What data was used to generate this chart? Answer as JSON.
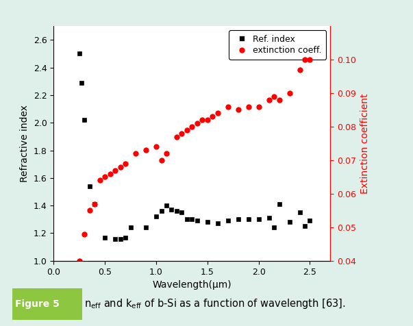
{
  "n_wavelength": [
    0.25,
    0.27,
    0.3,
    0.35,
    0.4,
    0.5,
    0.6,
    0.65,
    0.7,
    0.75,
    0.9,
    1.0,
    1.05,
    1.1,
    1.15,
    1.2,
    1.25,
    1.3,
    1.35,
    1.4,
    1.5,
    1.6,
    1.7,
    1.8,
    1.9,
    2.0,
    2.1,
    2.15,
    2.2,
    2.3,
    2.4,
    2.45,
    2.5
  ],
  "n_values": [
    2.5,
    2.29,
    2.02,
    1.54,
    1.41,
    1.17,
    1.16,
    1.16,
    1.17,
    1.24,
    1.24,
    1.32,
    1.36,
    1.4,
    1.37,
    1.36,
    1.35,
    1.3,
    1.3,
    1.29,
    1.28,
    1.27,
    1.29,
    1.3,
    1.3,
    1.3,
    1.31,
    1.24,
    1.41,
    1.28,
    1.35,
    1.25,
    1.29
  ],
  "k_wavelength": [
    0.25,
    0.3,
    0.35,
    0.4,
    0.45,
    0.5,
    0.55,
    0.6,
    0.65,
    0.7,
    0.8,
    0.9,
    1.0,
    1.05,
    1.1,
    1.2,
    1.25,
    1.3,
    1.35,
    1.4,
    1.45,
    1.5,
    1.55,
    1.6,
    1.7,
    1.8,
    1.9,
    2.0,
    2.1,
    2.15,
    2.2,
    2.3,
    2.4,
    2.45,
    2.5
  ],
  "k_values": [
    0.04,
    0.048,
    0.055,
    0.057,
    0.064,
    0.065,
    0.066,
    0.067,
    0.068,
    0.069,
    0.072,
    0.073,
    0.074,
    0.07,
    0.072,
    0.077,
    0.078,
    0.079,
    0.08,
    0.081,
    0.082,
    0.082,
    0.083,
    0.084,
    0.086,
    0.085,
    0.086,
    0.086,
    0.088,
    0.089,
    0.088,
    0.09,
    0.097,
    0.1,
    0.1
  ],
  "xlim": [
    0.0,
    2.7
  ],
  "ylim_left": [
    1.0,
    2.7
  ],
  "ylim_right": [
    0.04,
    0.11
  ],
  "xlabel": "Wavelength(μm)",
  "ylabel_left": "Refractive index",
  "ylabel_right": "Extinction coefficient",
  "legend_n": "Ref. index",
  "legend_k": "extinction coeff.",
  "n_color": "#000000",
  "k_color": "#ff0000",
  "plot_bg": "#ffffff",
  "outer_bg": "#dff0ea",
  "border_color": "#5bbf6e",
  "caption_bg": "#8dc63f",
  "label_fontsize": 10,
  "tick_fontsize": 9,
  "legend_fontsize": 9,
  "xticks": [
    0.0,
    0.5,
    1.0,
    1.5,
    2.0,
    2.5
  ],
  "yticks_left": [
    1.0,
    1.2,
    1.4,
    1.6,
    1.8,
    2.0,
    2.2,
    2.4,
    2.6
  ],
  "yticks_right": [
    0.04,
    0.05,
    0.06,
    0.07,
    0.08,
    0.09,
    0.1
  ]
}
